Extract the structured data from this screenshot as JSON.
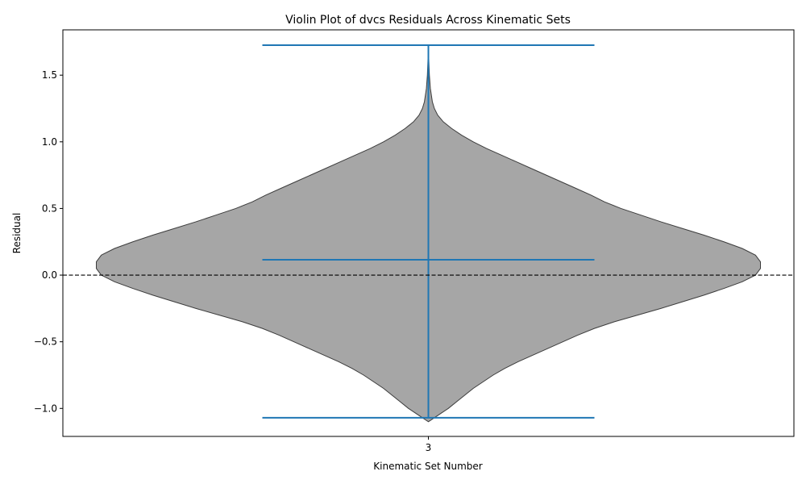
{
  "chart_data": {
    "type": "violin",
    "title": "Violin Plot of dvcs Residuals Across Kinematic Sets",
    "xlabel": "Kinematic Set Number",
    "ylabel": "Residual",
    "ylim": [
      -1.21,
      1.84
    ],
    "yticks": [
      -1.0,
      -0.5,
      0.0,
      0.5,
      1.0,
      1.5
    ],
    "ytick_labels": [
      "−1.0",
      "−0.5",
      "0.0",
      "0.5",
      "1.0",
      "1.5"
    ],
    "categories": [
      "3"
    ],
    "reference_line": {
      "y": 0.0,
      "style": "dashed",
      "color": "#000000"
    },
    "violins": [
      {
        "category": "3",
        "min": -1.07,
        "max": 1.725,
        "mean": 0.115,
        "color": "#a6a6a6",
        "edge_color": "#3c3c3c",
        "stat_color": "#1f77b4",
        "density_profile": [
          [
            -1.1,
            0.0
          ],
          [
            -1.05,
            0.03
          ],
          [
            -1.0,
            0.06
          ],
          [
            -0.95,
            0.085
          ],
          [
            -0.9,
            0.11
          ],
          [
            -0.85,
            0.135
          ],
          [
            -0.8,
            0.165
          ],
          [
            -0.75,
            0.195
          ],
          [
            -0.7,
            0.23
          ],
          [
            -0.65,
            0.27
          ],
          [
            -0.6,
            0.315
          ],
          [
            -0.55,
            0.36
          ],
          [
            -0.5,
            0.405
          ],
          [
            -0.45,
            0.45
          ],
          [
            -0.4,
            0.5
          ],
          [
            -0.35,
            0.56
          ],
          [
            -0.3,
            0.63
          ],
          [
            -0.25,
            0.7
          ],
          [
            -0.2,
            0.765
          ],
          [
            -0.15,
            0.83
          ],
          [
            -0.1,
            0.89
          ],
          [
            -0.05,
            0.945
          ],
          [
            0.0,
            0.985
          ],
          [
            0.05,
            1.0
          ],
          [
            0.1,
            1.0
          ],
          [
            0.15,
            0.985
          ],
          [
            0.2,
            0.945
          ],
          [
            0.25,
            0.89
          ],
          [
            0.3,
            0.83
          ],
          [
            0.35,
            0.765
          ],
          [
            0.4,
            0.7
          ],
          [
            0.45,
            0.64
          ],
          [
            0.5,
            0.58
          ],
          [
            0.55,
            0.53
          ],
          [
            0.6,
            0.49
          ],
          [
            0.65,
            0.445
          ],
          [
            0.7,
            0.4
          ],
          [
            0.75,
            0.355
          ],
          [
            0.8,
            0.31
          ],
          [
            0.85,
            0.265
          ],
          [
            0.9,
            0.22
          ],
          [
            0.95,
            0.175
          ],
          [
            1.0,
            0.135
          ],
          [
            1.05,
            0.1
          ],
          [
            1.1,
            0.07
          ],
          [
            1.15,
            0.045
          ],
          [
            1.2,
            0.028
          ],
          [
            1.25,
            0.018
          ],
          [
            1.3,
            0.012
          ],
          [
            1.4,
            0.006
          ],
          [
            1.5,
            0.003
          ],
          [
            1.6,
            0.0015
          ],
          [
            1.725,
            0.0
          ]
        ]
      }
    ]
  }
}
